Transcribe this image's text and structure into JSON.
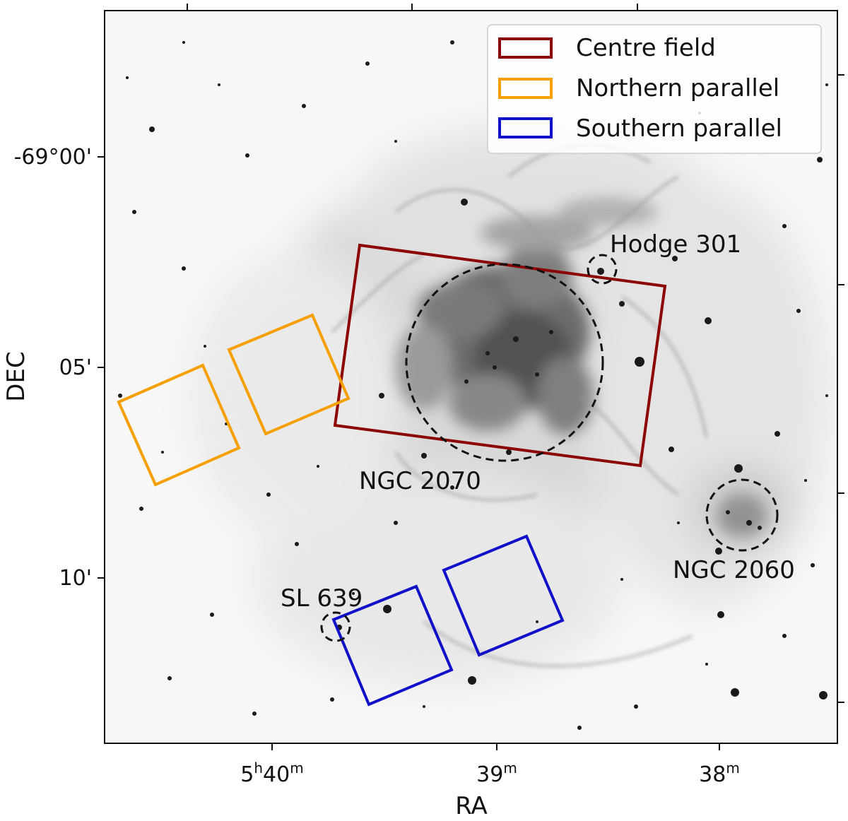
{
  "axes": {
    "xlabel": "RA",
    "ylabel": "DEC",
    "ra_ticks": [
      {
        "label": "5h40m",
        "parts": [
          "5",
          "h",
          "40",
          "m"
        ]
      },
      {
        "label": "39m",
        "parts": [
          "",
          "",
          "39",
          "m"
        ]
      },
      {
        "label": "38m",
        "parts": [
          "",
          "",
          "38",
          "m"
        ]
      }
    ],
    "dec_ticks": [
      "-69°00'",
      "05'",
      "10'"
    ]
  },
  "legend": {
    "placement": "top-right",
    "items": [
      {
        "label": "Centre field",
        "color": "#8b0000"
      },
      {
        "label": "Northern parallel",
        "color": "#f5a000"
      },
      {
        "label": "Southern parallel",
        "color": "#1010c8"
      }
    ]
  },
  "objects": [
    {
      "name": "Hodge 301"
    },
    {
      "name": "NGC 2070"
    },
    {
      "name": "NGC 2060"
    },
    {
      "name": "SL 639"
    }
  ],
  "image": {
    "style": "inverted greyscale nebula background",
    "colormap": "gray_r"
  }
}
